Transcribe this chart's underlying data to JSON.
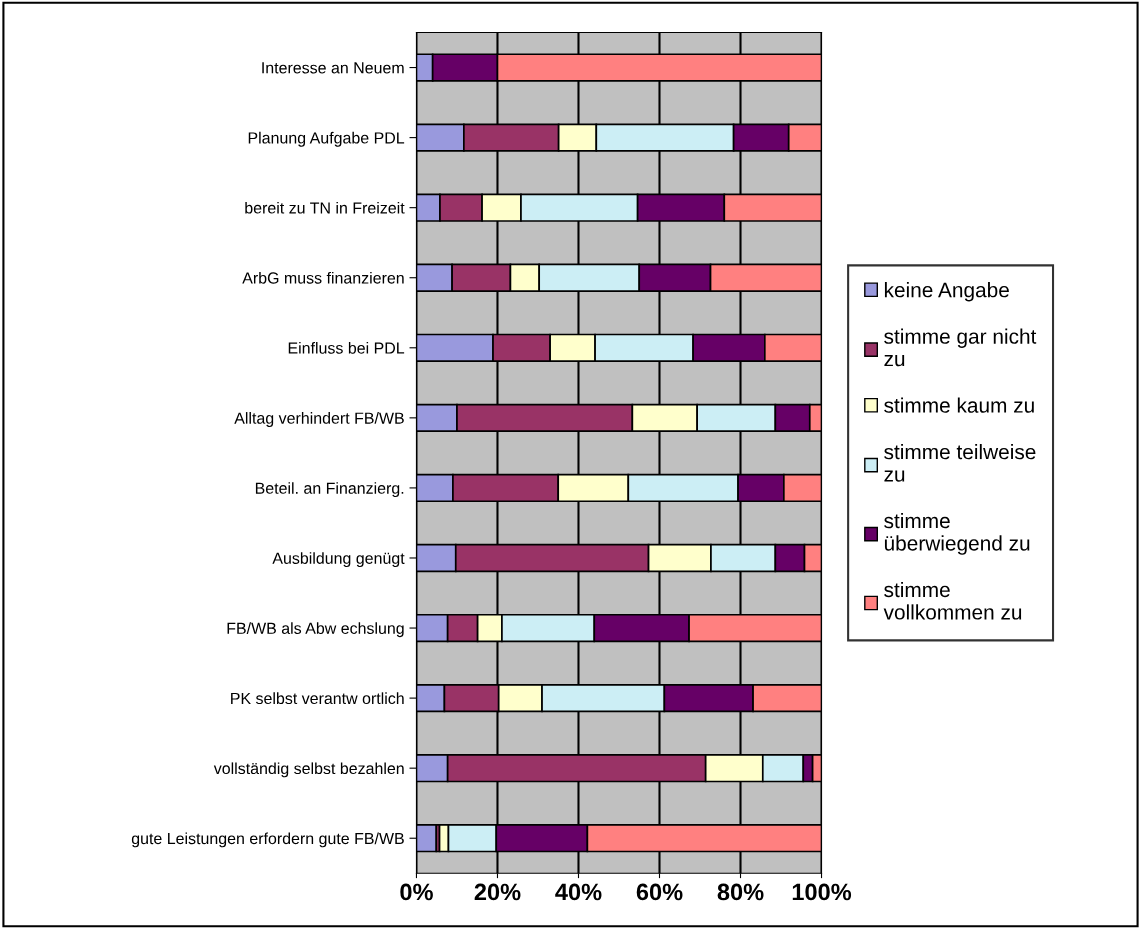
{
  "chart_data": {
    "type": "bar",
    "orientation": "horizontal",
    "stacked": true,
    "categories": [
      "Interesse an Neuem",
      "Planung Aufgabe PDL",
      "bereit zu TN in Freizeit",
      "ArbG muss finanzieren",
      "Einfluss bei PDL",
      "Alltag verhindert FB/WB",
      "Beteil. an Finanzierg.",
      "Ausbildung genügt",
      "FB/WB als Abw echslung",
      "PK selbst verantw ortlich",
      "vollständig selbst bezahlen",
      "gute Leistungen erfordern gute FB/WB"
    ],
    "series": [
      {
        "name": "keine Angabe",
        "color": "#9999dd",
        "values": [
          4,
          11.7,
          5.8,
          8.8,
          18.9,
          10.0,
          9.0,
          9.7,
          7.7,
          6.9,
          7.7,
          4.9
        ]
      },
      {
        "name": "stimme gar nicht zu",
        "color": "#993366",
        "values": [
          0,
          23.4,
          10.4,
          14.4,
          14.1,
          43.3,
          26.0,
          47.6,
          7.4,
          13.4,
          63.7,
          0.8
        ]
      },
      {
        "name": "stimme kaum zu",
        "color": "#ffffcc",
        "values": [
          0,
          9.3,
          9.6,
          7.1,
          11.1,
          16.0,
          17.3,
          15.4,
          6.0,
          10.7,
          14.1,
          2.2
        ]
      },
      {
        "name": "stimme teilweise zu",
        "color": "#cceef5",
        "values": [
          0,
          33.9,
          28.8,
          24.7,
          24.2,
          19.3,
          27.1,
          15.9,
          22.8,
          30.2,
          10.0,
          11.8
        ]
      },
      {
        "name": "stimme überwiegend zu",
        "color": "#660066",
        "values": [
          16,
          13.6,
          21.4,
          17.6,
          17.7,
          8.5,
          11.3,
          7.2,
          23.4,
          21.9,
          2.3,
          22.5
        ]
      },
      {
        "name": "stimme vollkommen zu",
        "color": "#ff8080",
        "values": [
          80,
          8.1,
          24.0,
          27.4,
          14.0,
          2.9,
          9.3,
          4.2,
          32.7,
          16.9,
          2.2,
          57.8
        ]
      }
    ],
    "xlim": [
      0,
      100
    ],
    "xticks": [
      {
        "value": 0,
        "label": "0%"
      },
      {
        "value": 20,
        "label": "20%"
      },
      {
        "value": 40,
        "label": "40%"
      },
      {
        "value": 60,
        "label": "60%"
      },
      {
        "value": 80,
        "label": "80%"
      },
      {
        "value": 100,
        "label": "100%"
      }
    ],
    "grid": "x",
    "legend": "right"
  }
}
